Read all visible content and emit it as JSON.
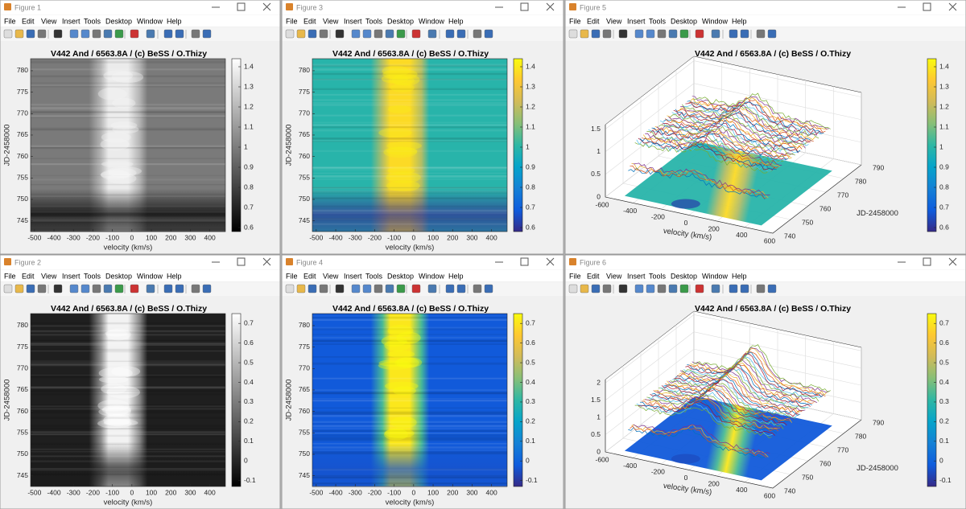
{
  "menu": [
    "File",
    "Edit",
    "View",
    "Insert",
    "Tools",
    "Desktop",
    "Window",
    "Help"
  ],
  "windows": [
    {
      "title": "Figure 1",
      "view": "2d",
      "colormap": "gray",
      "axes": {
        "title": "V442 And / 6563.8A / (c) BeSS / O.Thizy",
        "xlabel": "velocity (km/s)",
        "ylabel": "JD-2458000",
        "xlim": [
          -520,
          480
        ],
        "xticks": [
          -500,
          -400,
          -300,
          -200,
          -100,
          0,
          100,
          200,
          300,
          400
        ],
        "ylim": [
          742.5,
          782.8
        ],
        "yticks": [
          745,
          750,
          755,
          760,
          765,
          770,
          775,
          780
        ],
        "clim": [
          0.58,
          1.44
        ],
        "cticks": [
          0.6,
          0.7,
          0.8,
          0.9,
          1,
          1.1,
          1.2,
          1.3,
          1.4
        ]
      }
    },
    {
      "title": "Figure 3",
      "view": "2d",
      "colormap": "parula",
      "axes": {
        "title": "V442 And / 6563.8A / (c) BeSS / O.Thizy",
        "xlabel": "velocity (km/s)",
        "ylabel": "JD-2458000",
        "xlim": [
          -520,
          480
        ],
        "xticks": [
          -500,
          -400,
          -300,
          -200,
          -100,
          0,
          100,
          200,
          300,
          400
        ],
        "ylim": [
          742.5,
          782.8
        ],
        "yticks": [
          745,
          750,
          755,
          760,
          765,
          770,
          775,
          780
        ],
        "clim": [
          0.58,
          1.44
        ],
        "cticks": [
          0.6,
          0.7,
          0.8,
          0.9,
          1,
          1.1,
          1.2,
          1.3,
          1.4
        ]
      }
    },
    {
      "title": "Figure 5",
      "view": "3d",
      "colormap": "parula",
      "axes": {
        "title": "V442 And / 6563.8A / (c) BeSS / O.Thizy",
        "xlabel": "velocity (km/s)",
        "ylabel": "JD-2458000",
        "xlim": [
          -600,
          600
        ],
        "xticks": [
          -600,
          -400,
          -200,
          0,
          200,
          400,
          600
        ],
        "ylim": [
          740,
          790
        ],
        "yticks": [
          740,
          750,
          760,
          770,
          780,
          790
        ],
        "zlim": [
          0,
          1.6
        ],
        "zticks": [
          0,
          0.5,
          1,
          1.5
        ],
        "clim": [
          0.58,
          1.44
        ],
        "cticks": [
          0.6,
          0.7,
          0.8,
          0.9,
          1,
          1.1,
          1.2,
          1.3,
          1.4
        ]
      }
    },
    {
      "title": "Figure 2",
      "view": "2d",
      "colormap": "gray",
      "axes": {
        "title": "V442 And / 6563.8A / (c) BeSS / O.Thizy",
        "xlabel": "velocity (km/s)",
        "ylabel": "JD-2458000",
        "xlim": [
          -520,
          480
        ],
        "xticks": [
          -500,
          -400,
          -300,
          -200,
          -100,
          0,
          100,
          200,
          300,
          400
        ],
        "ylim": [
          742.5,
          782.8
        ],
        "yticks": [
          745,
          750,
          755,
          760,
          765,
          770,
          775,
          780
        ],
        "clim": [
          -0.13,
          0.75
        ],
        "cticks": [
          -0.1,
          0,
          0.1,
          0.2,
          0.3,
          0.4,
          0.5,
          0.6,
          0.7
        ]
      }
    },
    {
      "title": "Figure 4",
      "view": "2d",
      "colormap": "parula",
      "axes": {
        "title": "V442 And / 6563.8A / (c) BeSS / O.Thizy",
        "xlabel": "velocity (km/s)",
        "ylabel": "JD-2458000",
        "xlim": [
          -520,
          480
        ],
        "xticks": [
          -500,
          -400,
          -300,
          -200,
          -100,
          0,
          100,
          200,
          300,
          400
        ],
        "ylim": [
          742.5,
          782.8
        ],
        "yticks": [
          745,
          750,
          755,
          760,
          765,
          770,
          775,
          780
        ],
        "clim": [
          -0.13,
          0.75
        ],
        "cticks": [
          -0.1,
          0,
          0.1,
          0.2,
          0.3,
          0.4,
          0.5,
          0.6,
          0.7
        ]
      }
    },
    {
      "title": "Figure 6",
      "view": "3d",
      "colormap": "parula",
      "axes": {
        "title": "V442 And / 6563.8A / (c) BeSS / O.Thizy",
        "xlabel": "velocity (km/s)",
        "ylabel": "JD-2458000",
        "xlim": [
          -600,
          600
        ],
        "xticks": [
          -600,
          -400,
          -200,
          0,
          200,
          400,
          600
        ],
        "ylim": [
          740,
          790
        ],
        "yticks": [
          740,
          750,
          760,
          770,
          780,
          790
        ],
        "zlim": [
          0,
          2.1
        ],
        "zticks": [
          0,
          0.5,
          1,
          1.5,
          2
        ],
        "clim": [
          -0.13,
          0.75
        ],
        "cticks": [
          -0.1,
          0,
          0.1,
          0.2,
          0.3,
          0.4,
          0.5,
          0.6,
          0.7
        ]
      }
    }
  ]
}
